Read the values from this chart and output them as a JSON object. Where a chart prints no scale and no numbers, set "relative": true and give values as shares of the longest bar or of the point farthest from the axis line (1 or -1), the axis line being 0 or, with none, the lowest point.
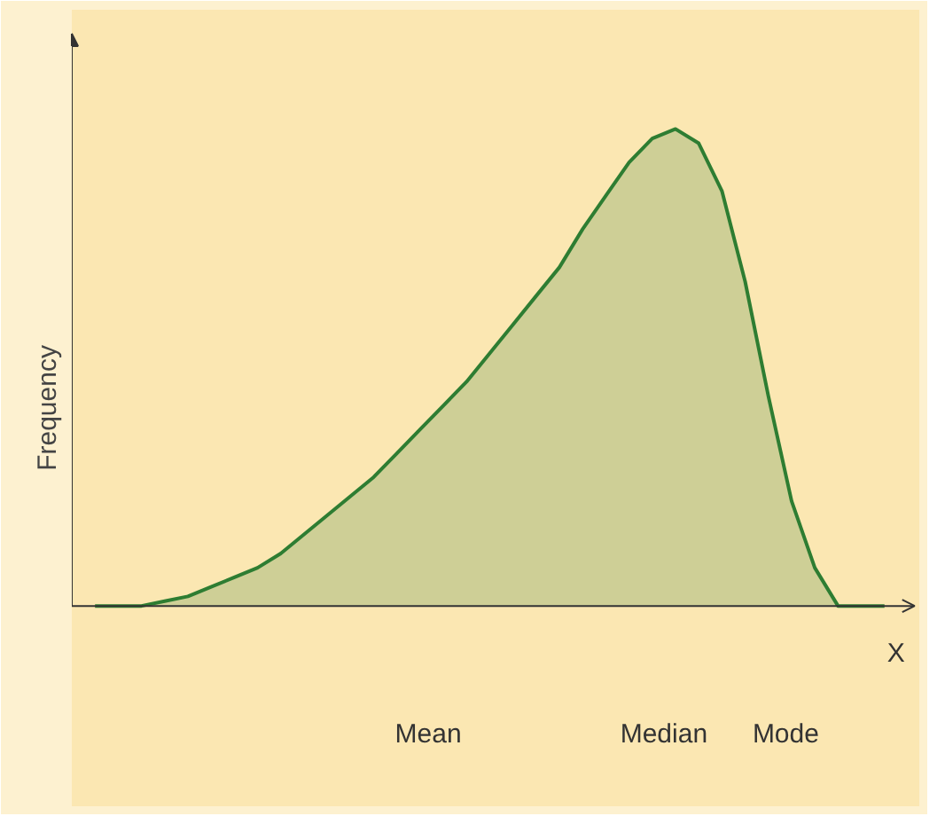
{
  "chart_data": {
    "type": "area",
    "relative": true,
    "xlabel": "X",
    "ylabel": "Frequency",
    "categories": [
      null,
      null,
      null,
      null,
      null,
      null,
      null,
      null,
      null,
      null,
      null,
      null,
      null,
      null,
      null,
      null,
      null,
      null,
      null,
      null,
      null,
      null,
      null,
      null,
      null,
      null,
      null,
      null,
      null,
      null,
      null,
      null,
      null,
      null,
      null
    ],
    "series": [
      {
        "color": "#2e7d32",
        "values": [
          0,
          0,
          0,
          0.01,
          0.02,
          0.04,
          0.06,
          0.08,
          0.11,
          0.15,
          0.19,
          0.23,
          0.27,
          0.32,
          0.37,
          0.42,
          0.47,
          0.53,
          0.59,
          0.65,
          0.71,
          0.79,
          0.86,
          0.93,
          0.98,
          1.0,
          0.97,
          0.87,
          0.68,
          0.44,
          0.22,
          0.08,
          0,
          0,
          0
        ]
      }
    ],
    "annotations": [
      "Mean",
      "Median",
      "Mode"
    ],
    "grid": false
  }
}
